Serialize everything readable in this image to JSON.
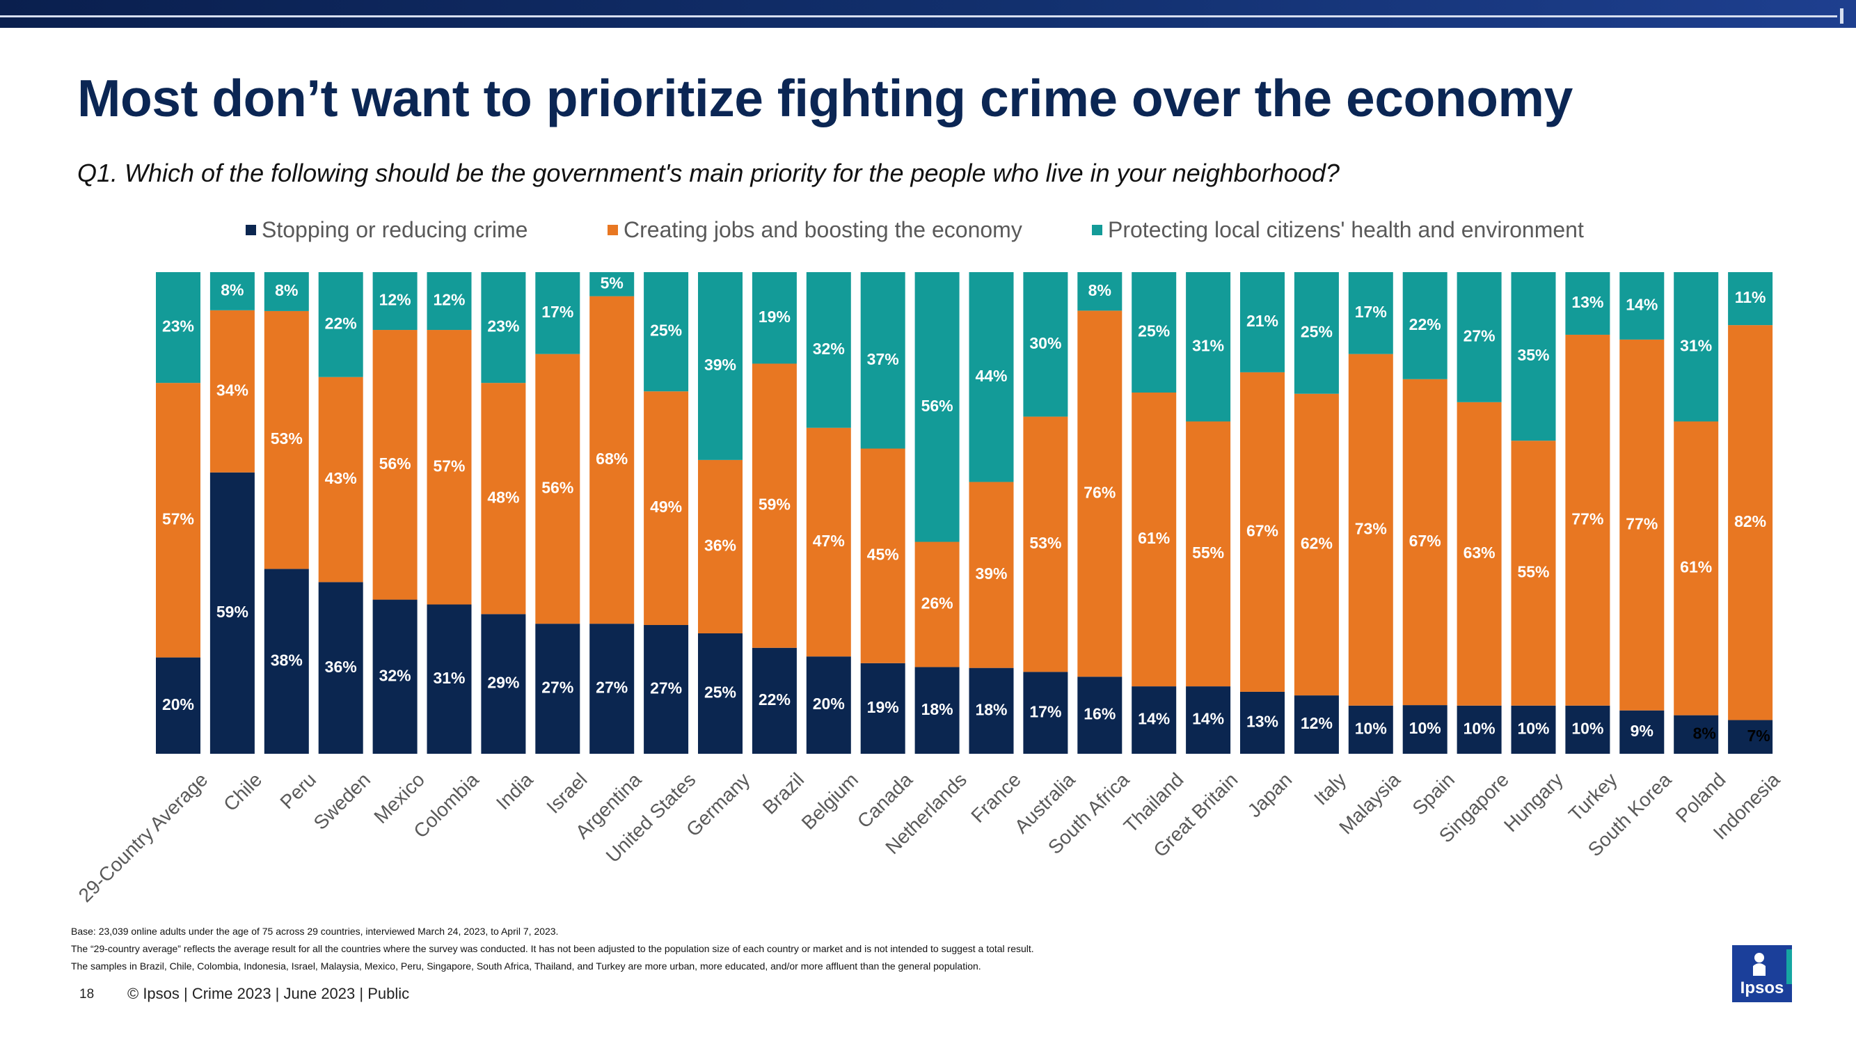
{
  "header": {
    "title": "Most don’t want to prioritize fighting crime over the economy",
    "subtitle": "Q1. Which of the following should be the government's main priority for the people who live in your neighborhood?"
  },
  "colors": {
    "crime": "#0b2650",
    "economy": "#e87722",
    "health": "#139b98",
    "title": "#0b2654"
  },
  "chart_data": {
    "type": "bar",
    "stacked": true,
    "percent": true,
    "categories": [
      "29-Country Average",
      "Chile",
      "Peru",
      "Sweden",
      "Mexico",
      "Colombia",
      "India",
      "Israel",
      "Argentina",
      "United States",
      "Germany",
      "Brazil",
      "Belgium",
      "Canada",
      "Netherlands",
      "France",
      "Australia",
      "South Africa",
      "Thailand",
      "Great Britain",
      "Japan",
      "Italy",
      "Malaysia",
      "Spain",
      "Singapore",
      "Hungary",
      "Turkey",
      "South Korea",
      "Poland",
      "Indonesia"
    ],
    "series": [
      {
        "name": "Stopping or reducing crime",
        "color": "#0b2650",
        "values": [
          20,
          59,
          38,
          36,
          32,
          31,
          29,
          27,
          27,
          27,
          25,
          22,
          20,
          19,
          18,
          18,
          17,
          16,
          14,
          14,
          13,
          12,
          10,
          10,
          10,
          10,
          10,
          9,
          8,
          7
        ]
      },
      {
        "name": "Creating jobs and boosting the economy",
        "color": "#e87722",
        "values": [
          57,
          34,
          53,
          43,
          56,
          57,
          48,
          56,
          68,
          49,
          36,
          59,
          47,
          45,
          26,
          39,
          53,
          76,
          61,
          55,
          67,
          62,
          73,
          67,
          63,
          55,
          77,
          77,
          61,
          82
        ]
      },
      {
        "name": "Protecting local citizens' health and environment",
        "color": "#139b98",
        "values": [
          23,
          8,
          8,
          22,
          12,
          12,
          23,
          17,
          5,
          25,
          39,
          19,
          32,
          37,
          56,
          44,
          30,
          8,
          25,
          31,
          21,
          25,
          17,
          22,
          27,
          35,
          13,
          14,
          31,
          11
        ]
      }
    ],
    "value_suffix": "%",
    "ylim": [
      0,
      100
    ],
    "legend_position": "top",
    "grid": false
  },
  "footer": {
    "notes": [
      "Base: 23,039 online adults under the age of 75 across 29 countries, interviewed March 24, 2023, to April 7, 2023.",
      "The “29-country average” reflects the average result for all the countries where the survey was conducted. It has not been adjusted to the population size of each country or market and is not intended to suggest a total result.",
      "The samples in Brazil, Chile, Colombia, Indonesia, Israel, Malaysia, Mexico, Peru, Singapore, South Africa, Thailand, and Turkey are more urban, more educated, and/or more affluent than the general population."
    ],
    "page_number": "18",
    "copyright": "© Ipsos | Crime 2023 | June 2023 | Public",
    "logo_text": "Ipsos"
  }
}
